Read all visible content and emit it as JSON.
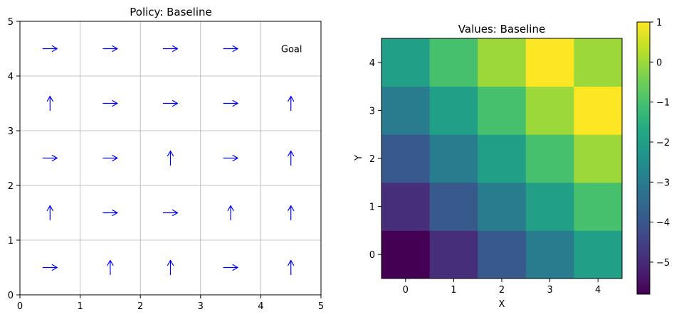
{
  "chart_data": [
    {
      "type": "quiver",
      "title": "Policy: Baseline",
      "xlim": [
        0,
        5
      ],
      "ylim": [
        0,
        5
      ],
      "xticks": [
        "0",
        "1",
        "2",
        "3",
        "4",
        "5"
      ],
      "yticks": [
        "0",
        "1",
        "2",
        "3",
        "4",
        "5"
      ],
      "grid": true,
      "arrow_color": "#0000ff",
      "policy_rows_top_to_bottom": [
        [
          "right",
          "right",
          "right",
          "right",
          "goal"
        ],
        [
          "up",
          "right",
          "right",
          "right",
          "up"
        ],
        [
          "right",
          "right",
          "up",
          "right",
          "up"
        ],
        [
          "up",
          "right",
          "right",
          "up",
          "up"
        ],
        [
          "right",
          "up",
          "up",
          "right",
          "up"
        ]
      ],
      "goal_label": "Goal"
    },
    {
      "type": "heatmap",
      "title": "Values: Baseline",
      "xlabel": "X",
      "ylabel": "Y",
      "x": [
        0,
        1,
        2,
        3,
        4
      ],
      "y": [
        0,
        1,
        2,
        3,
        4
      ],
      "colormap": "viridis",
      "vmin": -5.8,
      "vmax": 1.0,
      "values_rows_y0_to_y4": [
        [
          -5.8,
          -4.9,
          -3.9,
          -3.0,
          -2.0
        ],
        [
          -4.9,
          -3.9,
          -3.0,
          -2.0,
          -1.0
        ],
        [
          -3.9,
          -3.0,
          -2.0,
          -1.0,
          0.0
        ],
        [
          -3.0,
          -2.0,
          -1.0,
          0.0,
          1.0
        ],
        [
          -2.0,
          -1.0,
          0.0,
          1.0,
          0.0
        ]
      ],
      "colorbar_ticks": [
        "1",
        "0",
        "−1",
        "−2",
        "−3",
        "−4",
        "−5"
      ]
    }
  ]
}
